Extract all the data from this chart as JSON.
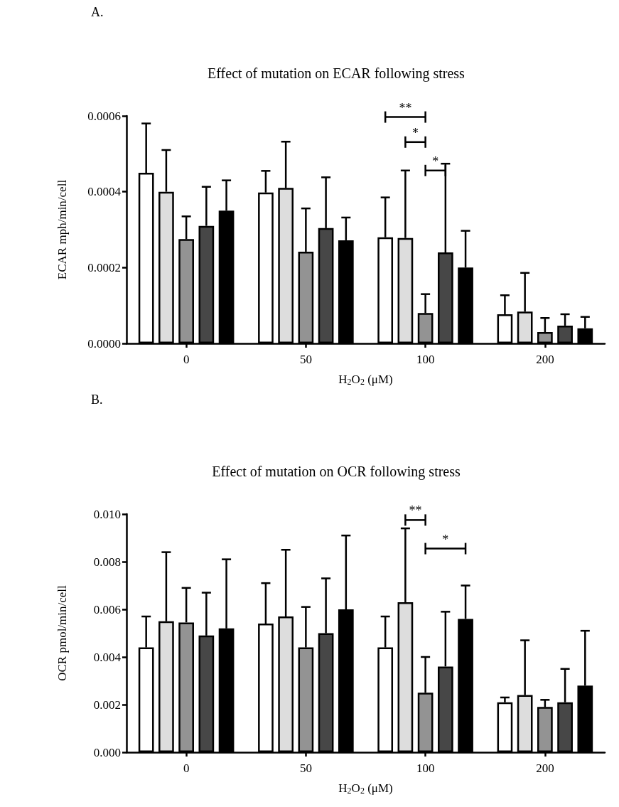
{
  "chart_data": [
    {
      "type": "bar",
      "title": "Effect of mutation on ECAR following stress",
      "xlabel": "H$_{2}$O$_{2}$ (μM)",
      "ylabel": "ECAR mph/min/cell",
      "categories": [
        "0",
        "50",
        "100",
        "200"
      ],
      "ylim": [
        0,
        0.0006
      ],
      "yticks": [
        {
          "value": 0,
          "label": "0.0000"
        },
        {
          "value": 0.0002,
          "label": "0.0002"
        },
        {
          "value": 0.0004,
          "label": "0.0004"
        },
        {
          "value": 0.0006,
          "label": "0.0006"
        }
      ],
      "series": [
        {
          "color": "#ffffff",
          "values": [
            0.00045,
            0.000398,
            0.00028,
            7.7e-05
          ],
          "errors": [
            [
              0.00045,
              0.00058
            ],
            [
              0.000398,
              0.000455
            ],
            [
              0.00028,
              0.000385
            ],
            [
              7.7e-05,
              0.000127
            ]
          ]
        },
        {
          "color": "#dddddd",
          "values": [
            0.0004,
            0.00041,
            0.000278,
            8.4e-05
          ],
          "errors": [
            [
              0.0004,
              0.00051
            ],
            [
              0.00041,
              0.000532
            ],
            [
              0.000278,
              0.000456
            ],
            [
              8.4e-05,
              0.000186
            ]
          ]
        },
        {
          "color": "#939393",
          "values": [
            0.000275,
            0.000242,
            8e-05,
            3e-05
          ],
          "errors": [
            [
              0.000275,
              0.000335
            ],
            [
              0.000242,
              0.000356
            ],
            [
              8e-05,
              0.00013
            ],
            [
              3e-05,
              6.7e-05
            ]
          ]
        },
        {
          "color": "#474747",
          "values": [
            0.00031,
            0.000304,
            0.00024,
            4.7e-05
          ],
          "errors": [
            [
              0.00031,
              0.000413
            ],
            [
              0.000304,
              0.000438
            ],
            [
              0.00024,
              0.000474
            ],
            [
              4.7e-05,
              7.7e-05
            ]
          ]
        },
        {
          "color": "#000000",
          "values": [
            0.00035,
            0.000272,
            0.0002,
            4e-05
          ],
          "errors": [
            [
              0.00035,
              0.00043
            ],
            [
              0.000272,
              0.000332
            ],
            [
              0.0002,
              0.000297
            ],
            [
              4e-05,
              7e-05
            ]
          ]
        }
      ],
      "annotations": [
        "A.",
        "**",
        "*",
        "*"
      ]
    },
    {
      "type": "bar",
      "title": "Effect of mutation on OCR following stress",
      "xlabel": "H$_{2}$O$_{2}$ (μM)",
      "ylabel": "OCR pmol/min/cell",
      "categories": [
        "0",
        "50",
        "100",
        "200"
      ],
      "ylim": [
        0,
        0.01
      ],
      "yticks": [
        {
          "value": 0,
          "label": "0.000"
        },
        {
          "value": 0.002,
          "label": "0.002"
        },
        {
          "value": 0.004,
          "label": "0.004"
        },
        {
          "value": 0.006,
          "label": "0.006"
        },
        {
          "value": 0.008,
          "label": "0.008"
        },
        {
          "value": 0.01,
          "label": "0.010"
        }
      ],
      "series": [
        {
          "color": "#ffffff",
          "values": [
            0.0044,
            0.0054,
            0.0044,
            0.0021
          ],
          "errors": [
            [
              0.0044,
              0.0057
            ],
            [
              0.0054,
              0.0071
            ],
            [
              0.0044,
              0.0057
            ],
            [
              0.0021,
              0.0023
            ]
          ]
        },
        {
          "color": "#dddddd",
          "values": [
            0.0055,
            0.0057,
            0.0063,
            0.0024
          ],
          "errors": [
            [
              0.0055,
              0.0084
            ],
            [
              0.0057,
              0.0085
            ],
            [
              0.0063,
              0.0094
            ],
            [
              0.0024,
              0.0047
            ]
          ]
        },
        {
          "color": "#939393",
          "values": [
            0.00545,
            0.0044,
            0.0025,
            0.0019
          ],
          "errors": [
            [
              0.00545,
              0.0069
            ],
            [
              0.0044,
              0.0061
            ],
            [
              0.0025,
              0.004
            ],
            [
              0.0019,
              0.0022
            ]
          ]
        },
        {
          "color": "#474747",
          "values": [
            0.0049,
            0.005,
            0.0036,
            0.0021
          ],
          "errors": [
            [
              0.0049,
              0.0067
            ],
            [
              0.005,
              0.0073
            ],
            [
              0.0036,
              0.0059
            ],
            [
              0.0021,
              0.0035
            ]
          ]
        },
        {
          "color": "#000000",
          "values": [
            0.0052,
            0.006,
            0.0056,
            0.0028
          ],
          "errors": [
            [
              0.0052,
              0.0081
            ],
            [
              0.006,
              0.0091
            ],
            [
              0.0056,
              0.007
            ],
            [
              0.0028,
              0.0051
            ]
          ]
        }
      ],
      "annotations": [
        "B.",
        "**",
        "*"
      ]
    }
  ]
}
